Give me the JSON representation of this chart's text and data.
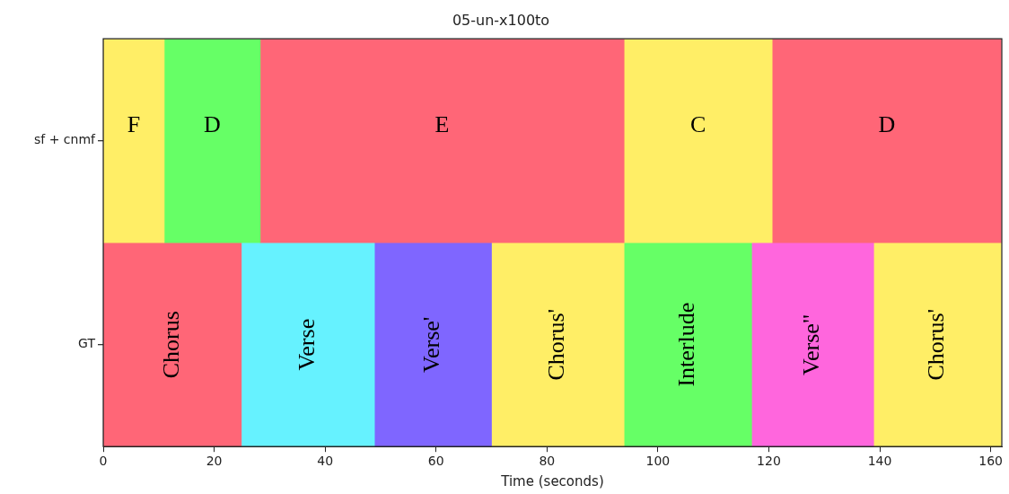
{
  "chart_data": {
    "type": "bar",
    "orientation": "horizontal",
    "title": "05-un-x100to",
    "xlabel": "Time (seconds)",
    "categories": [
      "sf + cnmf",
      "GT"
    ],
    "xlim": [
      0,
      162
    ],
    "xticks": [
      0,
      20,
      40,
      60,
      80,
      100,
      120,
      140,
      160
    ],
    "grid": false,
    "legend": false,
    "series": [
      {
        "color": "#ffee66",
        "values": [
          11,
          null
        ],
        "base": [
          0,
          null
        ],
        "value_labels": [
          "F",
          null
        ]
      },
      {
        "color": "#66ff66",
        "values": [
          17.3,
          null
        ],
        "base": [
          11,
          null
        ],
        "value_labels": [
          "D",
          null
        ]
      },
      {
        "color": "#ff6677",
        "values": [
          65.6,
          null
        ],
        "base": [
          28.3,
          null
        ],
        "value_labels": [
          "E",
          null
        ]
      },
      {
        "color": "#ffee66",
        "values": [
          26.7,
          null
        ],
        "base": [
          93.9,
          null
        ],
        "value_labels": [
          "C",
          null
        ]
      },
      {
        "color": "#ff6677",
        "values": [
          41.3,
          null
        ],
        "base": [
          120.6,
          null
        ],
        "value_labels": [
          "D",
          null
        ]
      },
      {
        "color": "#ff6677",
        "values": [
          null,
          24.9
        ],
        "base": [
          null,
          0
        ],
        "value_labels": [
          null,
          "Chorus"
        ]
      },
      {
        "color": "#66f2ff",
        "values": [
          null,
          24
        ],
        "base": [
          null,
          24.9
        ],
        "value_labels": [
          null,
          "Verse"
        ]
      },
      {
        "color": "#7f66ff",
        "values": [
          null,
          21.1
        ],
        "base": [
          null,
          48.9
        ],
        "value_labels": [
          null,
          "Verse'"
        ]
      },
      {
        "color": "#ffee66",
        "values": [
          null,
          23.9
        ],
        "base": [
          null,
          70
        ],
        "value_labels": [
          null,
          "Chorus'"
        ]
      },
      {
        "color": "#66ff66",
        "values": [
          null,
          23
        ],
        "base": [
          null,
          93.9
        ],
        "value_labels": [
          null,
          "Interlude"
        ]
      },
      {
        "color": "#ff66dd",
        "values": [
          null,
          22
        ],
        "base": [
          null,
          116.9
        ],
        "value_labels": [
          null,
          "Verse\""
        ]
      },
      {
        "color": "#ffee66",
        "values": [
          null,
          23
        ],
        "base": [
          null,
          138.9
        ],
        "value_labels": [
          null,
          "Chorus'"
        ]
      }
    ]
  }
}
